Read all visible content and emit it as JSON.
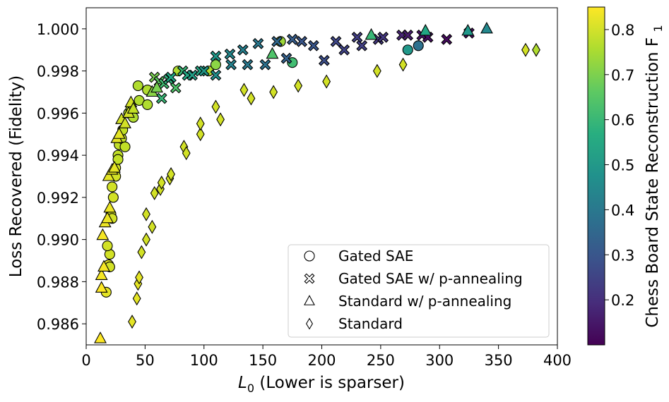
{
  "chart_data": {
    "type": "scatter",
    "title": "",
    "xlabel": "L",
    "xlabel_sub": "0",
    "xlabel_rest": " (Lower is sparser)",
    "ylabel": "Loss Recovered (Fidelity)",
    "xlim": [
      0,
      400
    ],
    "ylim": [
      0.985,
      1.001
    ],
    "xticks": [
      0,
      50,
      100,
      150,
      200,
      250,
      300,
      350,
      400
    ],
    "xtick_labels": [
      "0",
      "50",
      "100",
      "150",
      "200",
      "250",
      "300",
      "350",
      "400"
    ],
    "yticks": [
      0.986,
      0.988,
      0.99,
      0.992,
      0.994,
      0.996,
      0.998,
      1.0
    ],
    "ytick_labels": [
      "0.986",
      "0.988",
      "0.990",
      "0.992",
      "0.994",
      "0.996",
      "0.998",
      "1.000"
    ],
    "colorbar": {
      "label": "Chess Board State Reconstruction F",
      "label_sub": "1",
      "range": [
        0.1,
        0.85
      ],
      "ticks": [
        0.2,
        0.3,
        0.4,
        0.5,
        0.6,
        0.7,
        0.8
      ],
      "tick_labels": [
        "0.2",
        "0.3",
        "0.4",
        "0.5",
        "0.6",
        "0.7",
        "0.8"
      ]
    },
    "legend": {
      "placement": "lower-right",
      "entries": [
        {
          "label": "Gated SAE",
          "marker": "circle"
        },
        {
          "label": "Gated SAE w/ p-annealing",
          "marker": "x"
        },
        {
          "label": "Standard w/ p-annealing",
          "marker": "triangle"
        },
        {
          "label": "Standard",
          "marker": "diamond"
        }
      ]
    },
    "series": [
      {
        "name": "Gated SAE",
        "marker": "circle",
        "points": [
          {
            "x": 17,
            "y": 0.9875,
            "c": 0.82
          },
          {
            "x": 19,
            "y": 0.9888,
            "c": 0.82
          },
          {
            "x": 20,
            "y": 0.9893,
            "c": 0.8
          },
          {
            "x": 18,
            "y": 0.9897,
            "c": 0.8
          },
          {
            "x": 20,
            "y": 0.9887,
            "c": 0.8
          },
          {
            "x": 21,
            "y": 0.9912,
            "c": 0.8
          },
          {
            "x": 22,
            "y": 0.991,
            "c": 0.8
          },
          {
            "x": 22,
            "y": 0.9925,
            "c": 0.8
          },
          {
            "x": 23,
            "y": 0.992,
            "c": 0.8
          },
          {
            "x": 25,
            "y": 0.993,
            "c": 0.8
          },
          {
            "x": 25,
            "y": 0.9934,
            "c": 0.8
          },
          {
            "x": 27,
            "y": 0.994,
            "c": 0.78
          },
          {
            "x": 27,
            "y": 0.9938,
            "c": 0.78
          },
          {
            "x": 28,
            "y": 0.9945,
            "c": 0.78
          },
          {
            "x": 30,
            "y": 0.9948,
            "c": 0.78
          },
          {
            "x": 31,
            "y": 0.9952,
            "c": 0.78
          },
          {
            "x": 33,
            "y": 0.9944,
            "c": 0.78
          },
          {
            "x": 36,
            "y": 0.996,
            "c": 0.76
          },
          {
            "x": 38,
            "y": 0.9962,
            "c": 0.76
          },
          {
            "x": 40,
            "y": 0.9958,
            "c": 0.76
          },
          {
            "x": 44,
            "y": 0.9973,
            "c": 0.76
          },
          {
            "x": 45,
            "y": 0.9966,
            "c": 0.76
          },
          {
            "x": 52,
            "y": 0.9971,
            "c": 0.76
          },
          {
            "x": 52,
            "y": 0.9964,
            "c": 0.76
          },
          {
            "x": 78,
            "y": 0.998,
            "c": 0.76
          },
          {
            "x": 104,
            "y": 0.998,
            "c": 0.76
          },
          {
            "x": 110,
            "y": 0.9983,
            "c": 0.72
          },
          {
            "x": 165,
            "y": 0.9994,
            "c": 0.74
          },
          {
            "x": 175,
            "y": 0.9984,
            "c": 0.62
          },
          {
            "x": 273,
            "y": 0.999,
            "c": 0.5
          },
          {
            "x": 282,
            "y": 0.9992,
            "c": 0.38
          }
        ]
      },
      {
        "name": "Gated SAE w/ p-annealing",
        "marker": "x",
        "points": [
          {
            "x": 58,
            "y": 0.9977,
            "c": 0.7
          },
          {
            "x": 62,
            "y": 0.9975,
            "c": 0.66
          },
          {
            "x": 64,
            "y": 0.9967,
            "c": 0.6
          },
          {
            "x": 66,
            "y": 0.9974,
            "c": 0.62
          },
          {
            "x": 70,
            "y": 0.9976,
            "c": 0.58
          },
          {
            "x": 72,
            "y": 0.9977,
            "c": 0.55
          },
          {
            "x": 76,
            "y": 0.9972,
            "c": 0.64
          },
          {
            "x": 82,
            "y": 0.998,
            "c": 0.6
          },
          {
            "x": 86,
            "y": 0.9978,
            "c": 0.55
          },
          {
            "x": 90,
            "y": 0.9978,
            "c": 0.52
          },
          {
            "x": 97,
            "y": 0.998,
            "c": 0.55
          },
          {
            "x": 100,
            "y": 0.998,
            "c": 0.5
          },
          {
            "x": 110,
            "y": 0.9987,
            "c": 0.5
          },
          {
            "x": 110,
            "y": 0.9978,
            "c": 0.47
          },
          {
            "x": 122,
            "y": 0.9988,
            "c": 0.45
          },
          {
            "x": 123,
            "y": 0.9983,
            "c": 0.43
          },
          {
            "x": 133,
            "y": 0.999,
            "c": 0.42
          },
          {
            "x": 137,
            "y": 0.9983,
            "c": 0.4
          },
          {
            "x": 146,
            "y": 0.9993,
            "c": 0.4
          },
          {
            "x": 152,
            "y": 0.9983,
            "c": 0.38
          },
          {
            "x": 162,
            "y": 0.9994,
            "c": 0.35
          },
          {
            "x": 170,
            "y": 0.9986,
            "c": 0.33
          },
          {
            "x": 175,
            "y": 0.9995,
            "c": 0.32
          },
          {
            "x": 183,
            "y": 0.9994,
            "c": 0.3
          },
          {
            "x": 193,
            "y": 0.9992,
            "c": 0.3
          },
          {
            "x": 202,
            "y": 0.9985,
            "c": 0.28
          },
          {
            "x": 212,
            "y": 0.9994,
            "c": 0.26
          },
          {
            "x": 219,
            "y": 0.999,
            "c": 0.25
          },
          {
            "x": 230,
            "y": 0.9996,
            "c": 0.24
          },
          {
            "x": 234,
            "y": 0.9992,
            "c": 0.24
          },
          {
            "x": 248,
            "y": 0.9995,
            "c": 0.22
          },
          {
            "x": 252,
            "y": 0.9996,
            "c": 0.22
          },
          {
            "x": 268,
            "y": 0.9997,
            "c": 0.18
          },
          {
            "x": 273,
            "y": 0.9997,
            "c": 0.16
          },
          {
            "x": 285,
            "y": 0.9997,
            "c": 0.14
          },
          {
            "x": 290,
            "y": 0.9996,
            "c": 0.13
          },
          {
            "x": 306,
            "y": 0.9995,
            "c": 0.12
          },
          {
            "x": 325,
            "y": 0.9998,
            "c": 0.12
          }
        ]
      },
      {
        "name": "Standard w/ p-annealing",
        "marker": "triangle",
        "points": [
          {
            "x": 12,
            "y": 0.9853,
            "c": 0.85
          },
          {
            "x": 13,
            "y": 0.9877,
            "c": 0.85
          },
          {
            "x": 13,
            "y": 0.9883,
            "c": 0.84
          },
          {
            "x": 15,
            "y": 0.9887,
            "c": 0.84
          },
          {
            "x": 14,
            "y": 0.9902,
            "c": 0.84
          },
          {
            "x": 16,
            "y": 0.9908,
            "c": 0.83
          },
          {
            "x": 18,
            "y": 0.991,
            "c": 0.83
          },
          {
            "x": 20,
            "y": 0.9915,
            "c": 0.83
          },
          {
            "x": 19,
            "y": 0.993,
            "c": 0.82
          },
          {
            "x": 22,
            "y": 0.9933,
            "c": 0.82
          },
          {
            "x": 24,
            "y": 0.9934,
            "c": 0.82
          },
          {
            "x": 26,
            "y": 0.9948,
            "c": 0.82
          },
          {
            "x": 28,
            "y": 0.995,
            "c": 0.82
          },
          {
            "x": 30,
            "y": 0.9957,
            "c": 0.8
          },
          {
            "x": 33,
            "y": 0.9955,
            "c": 0.8
          },
          {
            "x": 36,
            "y": 0.996,
            "c": 0.8
          },
          {
            "x": 38,
            "y": 0.9965,
            "c": 0.8
          },
          {
            "x": 40,
            "y": 0.9962,
            "c": 0.78
          },
          {
            "x": 56,
            "y": 0.997,
            "c": 0.72
          },
          {
            "x": 60,
            "y": 0.9972,
            "c": 0.7
          },
          {
            "x": 158,
            "y": 0.9988,
            "c": 0.64
          },
          {
            "x": 242,
            "y": 0.9997,
            "c": 0.6
          },
          {
            "x": 288,
            "y": 0.9999,
            "c": 0.55
          },
          {
            "x": 324,
            "y": 0.9999,
            "c": 0.5
          },
          {
            "x": 340,
            "y": 1.0,
            "c": 0.45
          }
        ]
      },
      {
        "name": "Standard",
        "marker": "diamond",
        "points": [
          {
            "x": 39,
            "y": 0.9861,
            "c": 0.82
          },
          {
            "x": 43,
            "y": 0.9872,
            "c": 0.82
          },
          {
            "x": 44,
            "y": 0.9879,
            "c": 0.82
          },
          {
            "x": 45,
            "y": 0.9882,
            "c": 0.82
          },
          {
            "x": 47,
            "y": 0.9894,
            "c": 0.8
          },
          {
            "x": 51,
            "y": 0.99,
            "c": 0.8
          },
          {
            "x": 51,
            "y": 0.9912,
            "c": 0.8
          },
          {
            "x": 56,
            "y": 0.9906,
            "c": 0.8
          },
          {
            "x": 58,
            "y": 0.9922,
            "c": 0.8
          },
          {
            "x": 63,
            "y": 0.9924,
            "c": 0.8
          },
          {
            "x": 64,
            "y": 0.9927,
            "c": 0.8
          },
          {
            "x": 71,
            "y": 0.9929,
            "c": 0.8
          },
          {
            "x": 72,
            "y": 0.9931,
            "c": 0.8
          },
          {
            "x": 83,
            "y": 0.9944,
            "c": 0.8
          },
          {
            "x": 85,
            "y": 0.9941,
            "c": 0.8
          },
          {
            "x": 97,
            "y": 0.995,
            "c": 0.8
          },
          {
            "x": 97,
            "y": 0.9955,
            "c": 0.8
          },
          {
            "x": 110,
            "y": 0.9963,
            "c": 0.8
          },
          {
            "x": 114,
            "y": 0.9957,
            "c": 0.8
          },
          {
            "x": 134,
            "y": 0.9971,
            "c": 0.8
          },
          {
            "x": 140,
            "y": 0.9967,
            "c": 0.8
          },
          {
            "x": 159,
            "y": 0.997,
            "c": 0.8
          },
          {
            "x": 180,
            "y": 0.9973,
            "c": 0.8
          },
          {
            "x": 204,
            "y": 0.9975,
            "c": 0.8
          },
          {
            "x": 247,
            "y": 0.998,
            "c": 0.8
          },
          {
            "x": 269,
            "y": 0.9983,
            "c": 0.8
          },
          {
            "x": 373,
            "y": 0.999,
            "c": 0.8
          },
          {
            "x": 382,
            "y": 0.999,
            "c": 0.76
          }
        ]
      }
    ]
  }
}
